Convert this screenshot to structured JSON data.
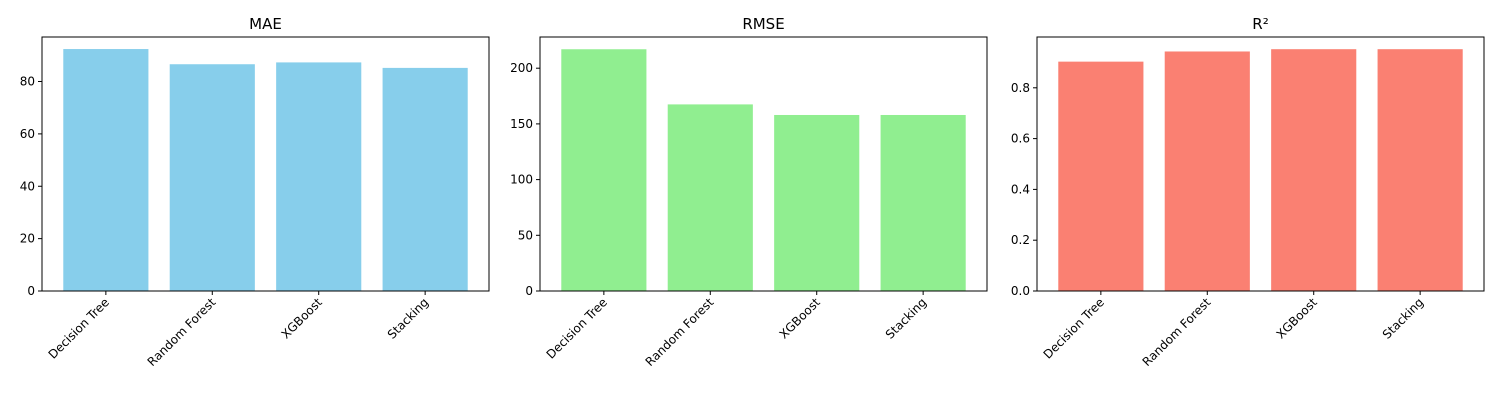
{
  "chart_data": [
    {
      "type": "bar",
      "title": "MAE",
      "categories": [
        "Decision Tree",
        "Random Forest",
        "XGBoost",
        "Stacking"
      ],
      "values": [
        92.4,
        86.6,
        87.3,
        85.2
      ],
      "color": "#87ceeb",
      "ylim": [
        0,
        97
      ],
      "yticks": [
        0,
        20,
        40,
        60,
        80
      ],
      "ytick_labels": [
        "0",
        "20",
        "40",
        "60",
        "80"
      ],
      "xlabel": "",
      "ylabel": ""
    },
    {
      "type": "bar",
      "title": "RMSE",
      "categories": [
        "Decision Tree",
        "Random Forest",
        "XGBoost",
        "Stacking"
      ],
      "values": [
        217,
        167.5,
        158,
        158
      ],
      "color": "#90ee90",
      "ylim": [
        0,
        228
      ],
      "yticks": [
        0,
        50,
        100,
        150,
        200
      ],
      "ytick_labels": [
        "0",
        "50",
        "100",
        "150",
        "200"
      ],
      "xlabel": "",
      "ylabel": ""
    },
    {
      "type": "bar",
      "title": "R²",
      "categories": [
        "Decision Tree",
        "Random Forest",
        "XGBoost",
        "Stacking"
      ],
      "values": [
        0.903,
        0.943,
        0.952,
        0.952
      ],
      "color": "#fa8072",
      "ylim": [
        0,
        1.0
      ],
      "yticks": [
        0,
        0.2,
        0.4,
        0.6,
        0.8
      ],
      "ytick_labels": [
        "0.0",
        "0.2",
        "0.4",
        "0.6",
        "0.8"
      ],
      "xlabel": "",
      "ylabel": ""
    }
  ]
}
